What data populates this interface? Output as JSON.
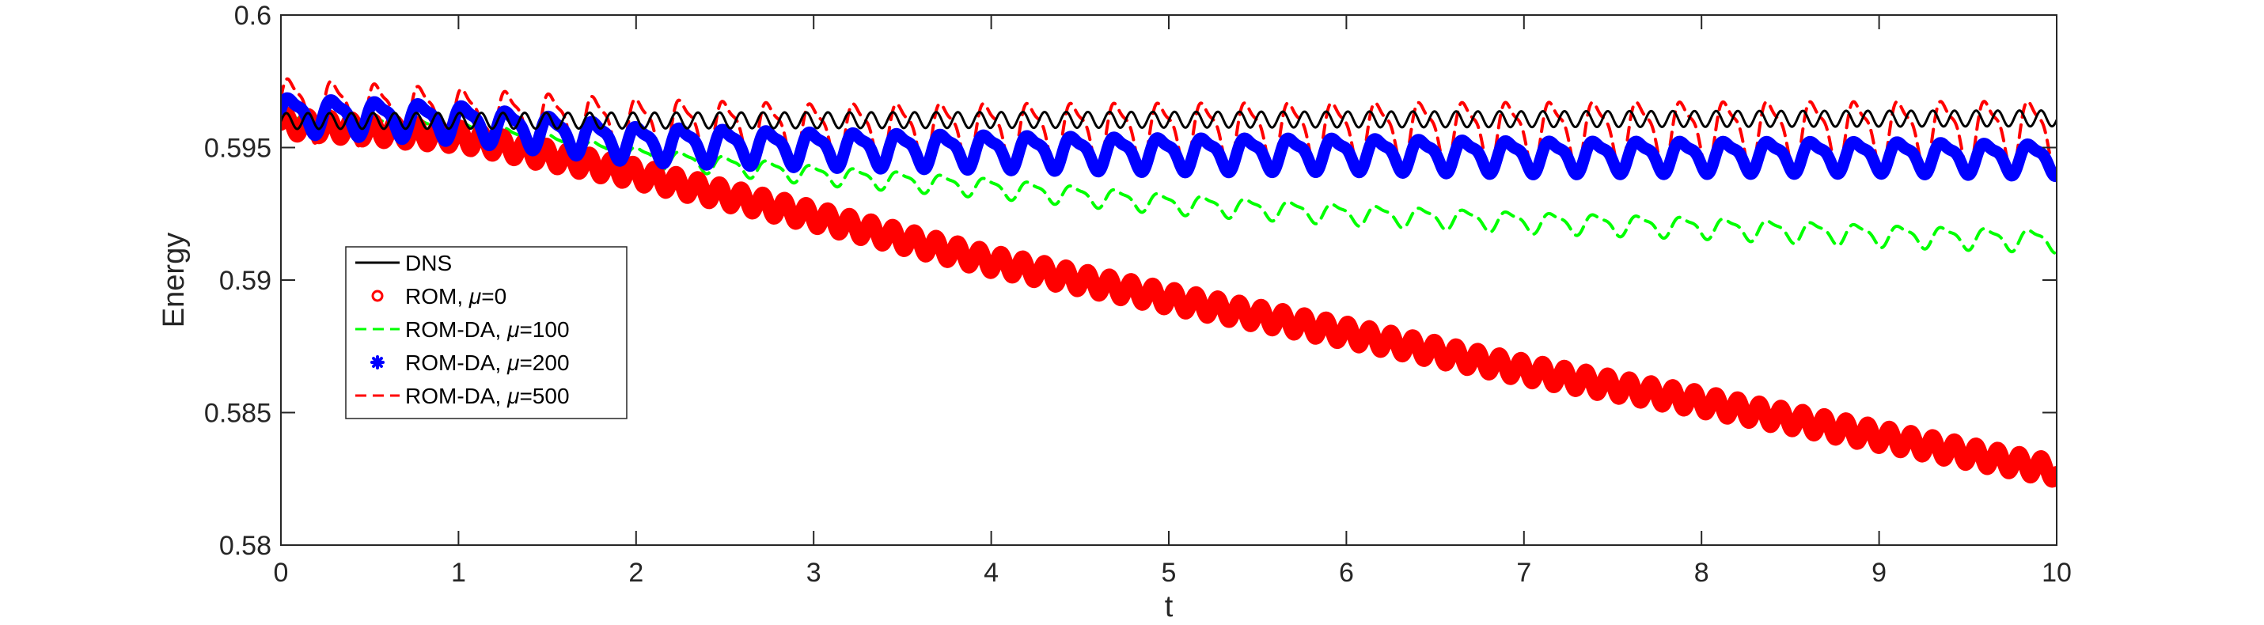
{
  "chart_data": {
    "type": "line",
    "title": "",
    "xlabel": "t",
    "ylabel": "Energy",
    "xlim": [
      0,
      10
    ],
    "ylim": [
      0.58,
      0.6
    ],
    "xticks": [
      "0",
      "1",
      "2",
      "3",
      "4",
      "5",
      "6",
      "7",
      "8",
      "9",
      "10"
    ],
    "yticks": [
      "0.58",
      "0.585",
      "0.59",
      "0.595",
      "0.6"
    ],
    "grid": false,
    "legend_position": "left-lower",
    "series": [
      {
        "name": "DNS",
        "color": "#000000",
        "style": "solid-thin",
        "base": [
          [
            0,
            0.596
          ],
          [
            10,
            0.5961
          ]
        ],
        "osc_amp": [
          [
            0,
            0.0003
          ],
          [
            10,
            0.0003
          ]
        ],
        "period": 0.122
      },
      {
        "name": "ROM, μ=0",
        "label_prefix": "ROM, ",
        "label_suffix": "=0",
        "color": "#ff0000",
        "style": "circle-markers",
        "base": [
          [
            0,
            0.5959
          ],
          [
            1,
            0.5954
          ],
          [
            2,
            0.594
          ],
          [
            3,
            0.5924
          ],
          [
            4,
            0.5907
          ],
          [
            5,
            0.5893
          ],
          [
            6,
            0.588
          ],
          [
            7,
            0.5866
          ],
          [
            8,
            0.5854
          ],
          [
            9,
            0.5841
          ],
          [
            10,
            0.5828
          ]
        ],
        "osc_amp": [
          [
            0,
            0.0004
          ],
          [
            10,
            0.0004
          ]
        ],
        "period": 0.122
      },
      {
        "name": "ROM-DA, μ=100",
        "label_prefix": "ROM-DA, ",
        "label_suffix": "=100",
        "color": "#00ff00",
        "style": "dashed",
        "base": [
          [
            0,
            0.596
          ],
          [
            1,
            0.5957
          ],
          [
            2,
            0.5947
          ],
          [
            3,
            0.594
          ],
          [
            4,
            0.5935
          ],
          [
            5,
            0.5929
          ],
          [
            6,
            0.5925
          ],
          [
            7,
            0.5922
          ],
          [
            8,
            0.592
          ],
          [
            9,
            0.5917
          ],
          [
            10,
            0.5915
          ]
        ],
        "osc_amp": [
          [
            0,
            0.0004
          ],
          [
            10,
            0.0005
          ]
        ],
        "period": 0.245
      },
      {
        "name": "ROM-DA, μ=200",
        "label_prefix": "ROM-DA, ",
        "label_suffix": "=200",
        "color": "#0000ff",
        "style": "star-markers",
        "base": [
          [
            0,
            0.5963
          ],
          [
            1,
            0.596
          ],
          [
            2,
            0.5952
          ],
          [
            3,
            0.595
          ],
          [
            4,
            0.5949
          ],
          [
            5,
            0.5948
          ],
          [
            6,
            0.5948
          ],
          [
            7,
            0.5947
          ],
          [
            8,
            0.5947
          ],
          [
            9,
            0.5947
          ],
          [
            10,
            0.5946
          ]
        ],
        "osc_amp": [
          [
            0,
            0.0008
          ],
          [
            2,
            0.0008
          ],
          [
            10,
            0.0007
          ]
        ],
        "period": 0.245
      },
      {
        "name": "ROM-DA, μ=500",
        "label_prefix": "ROM-DA, ",
        "label_suffix": "=500",
        "color": "#ff0000",
        "style": "dashed",
        "base": [
          [
            0,
            0.5966
          ],
          [
            1,
            0.5962
          ],
          [
            2,
            0.5958
          ],
          [
            3,
            0.5956
          ],
          [
            4,
            0.5956
          ],
          [
            5,
            0.5956
          ],
          [
            6,
            0.5956
          ],
          [
            7,
            0.5956
          ],
          [
            8,
            0.5956
          ],
          [
            9,
            0.5956
          ],
          [
            10,
            0.5956
          ]
        ],
        "osc_amp": [
          [
            0,
            0.0014
          ],
          [
            10,
            0.0016
          ]
        ],
        "period": 0.245
      }
    ]
  }
}
